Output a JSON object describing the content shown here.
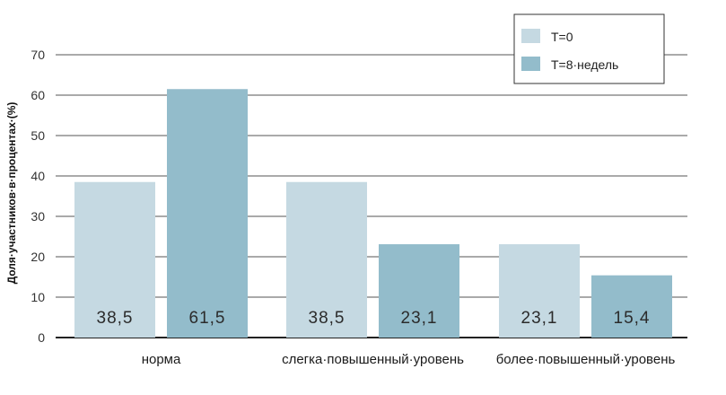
{
  "chart_data": {
    "type": "bar",
    "ylabel": "Доля·участников·в·процентах·(%)",
    "ylim": [
      0,
      70
    ],
    "yticks": [
      "0",
      "10",
      "20",
      "30",
      "40",
      "50",
      "60",
      "70"
    ],
    "categories": [
      "норма",
      "слегка·повышенный·уровень",
      "более·повышенный·уровень"
    ],
    "series": [
      {
        "name": "T=0",
        "values": [
          38.5,
          38.5,
          23.1
        ],
        "labels": [
          "38,5",
          "38,5",
          "23,1"
        ],
        "color": "#c5d9e2"
      },
      {
        "name": "T=8·недель",
        "values": [
          61.5,
          23.1,
          15.4
        ],
        "labels": [
          "61,5",
          "23,1",
          "15,4"
        ],
        "color": "#93bccb"
      }
    ],
    "grid": true,
    "legend_position": "top-right"
  }
}
